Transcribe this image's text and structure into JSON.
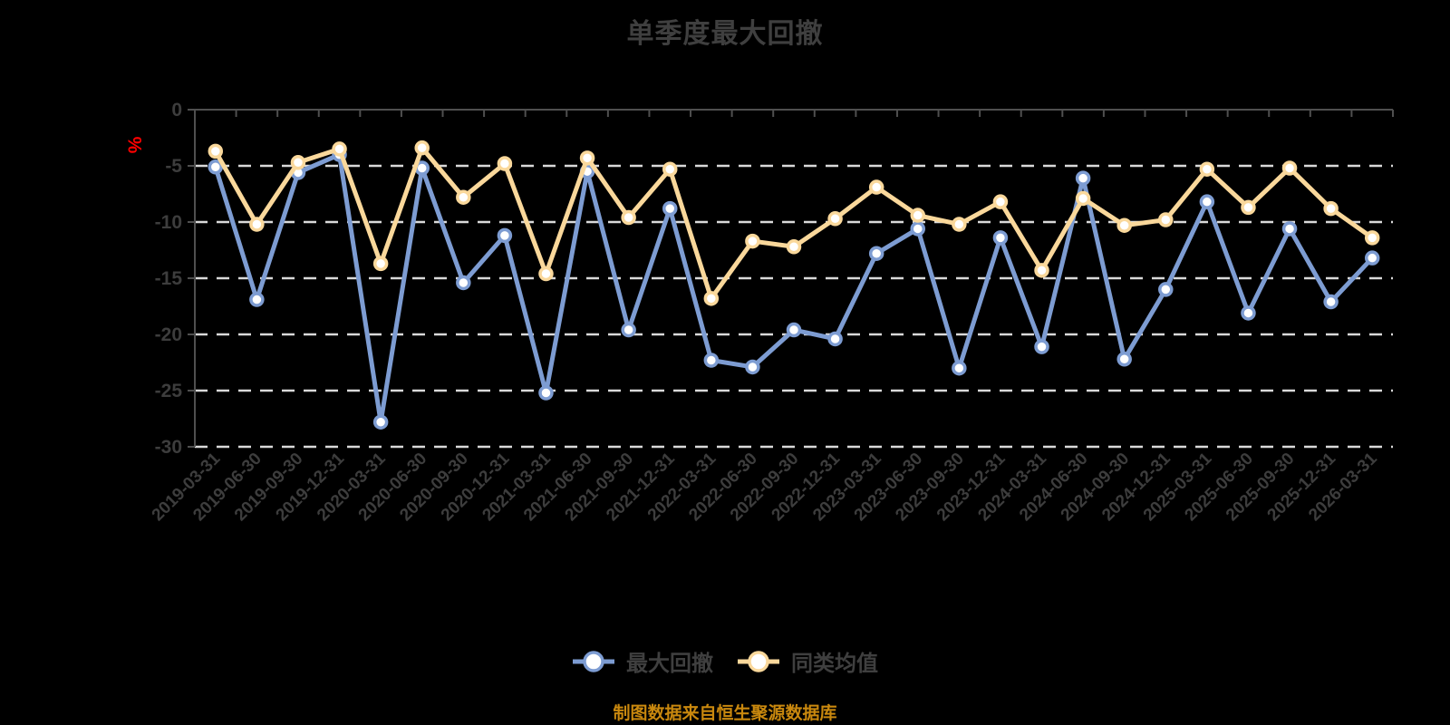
{
  "title": "单季度最大回撤",
  "source_note": "制图数据来自恒生聚源数据库",
  "unit_label": "%",
  "colors": {
    "background": "#000000",
    "title_text": "#3f3f3f",
    "axis_label": "#3d3d3d",
    "axis_line": "#4f4f4f",
    "gridline": "#d9d9d9",
    "unit_label": "#ff0000",
    "source_note": "#c9880e",
    "marker_fill": "#ffffff"
  },
  "legend": {
    "items": [
      {
        "label": "最大回撤",
        "color": "#7d9cd2"
      },
      {
        "label": "同类均值",
        "color": "#fad89b"
      }
    ]
  },
  "chart_data": {
    "type": "line",
    "title": "单季度最大回撤",
    "xlabel": "",
    "ylabel": "%",
    "ylim": [
      -30,
      0
    ],
    "y_ticks": [
      0,
      -5,
      -10,
      -15,
      -20,
      -25,
      -30
    ],
    "grid": "horizontal dashed",
    "legend_position": "bottom",
    "categories": [
      "2019-03-31",
      "2019-06-30",
      "2019-09-30",
      "2019-12-31",
      "2020-03-31",
      "2020-06-30",
      "2020-09-30",
      "2020-12-31",
      "2021-03-31",
      "2021-06-30",
      "2021-09-30",
      "2021-12-31",
      "2022-03-31",
      "2022-06-30",
      "2022-09-30",
      "2022-12-31",
      "2023-03-31",
      "2023-06-30",
      "2023-09-30",
      "2023-12-31",
      "2024-03-31",
      "2024-06-30",
      "2024-09-30",
      "2024-12-31",
      "2025-03-31",
      "2025-06-30",
      "2025-09-30",
      "2025-12-31",
      "2026-03-31"
    ],
    "series": [
      {
        "name": "最大回撤",
        "color": "#7d9cd2",
        "values": [
          -5.1,
          -16.9,
          -5.6,
          -4.0,
          -27.8,
          -5.2,
          -15.4,
          -11.2,
          -25.2,
          -5.5,
          -19.6,
          -8.8,
          -22.3,
          -22.9,
          -19.6,
          -20.4,
          -12.8,
          -10.6,
          -23.0,
          -11.4,
          -21.1,
          -6.1,
          -22.2,
          -16.0,
          -8.2,
          -18.1,
          -10.6,
          -17.1,
          -13.2
        ]
      },
      {
        "name": "同类均值",
        "color": "#fad89b",
        "values": [
          -3.7,
          -10.2,
          -4.7,
          -3.5,
          -13.7,
          -3.4,
          -7.8,
          -4.8,
          -14.6,
          -4.3,
          -9.6,
          -5.3,
          -16.8,
          -11.7,
          -12.2,
          -9.7,
          -6.9,
          -9.4,
          -10.2,
          -8.2,
          -14.3,
          -7.9,
          -10.3,
          -9.8,
          -5.3,
          -8.7,
          -5.2,
          -8.8,
          -11.4
        ]
      }
    ]
  }
}
